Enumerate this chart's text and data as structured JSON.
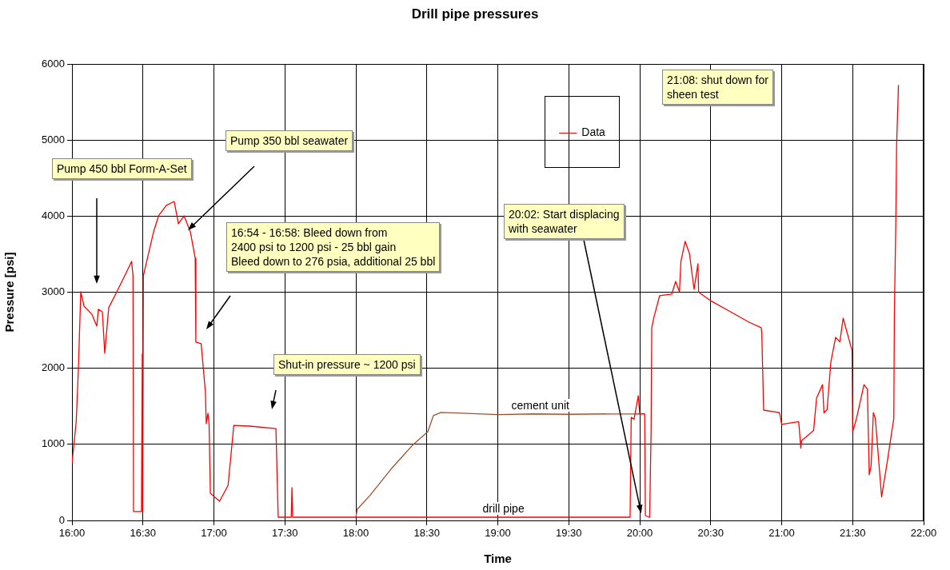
{
  "chart_data": {
    "type": "line",
    "title": "Drill pipe pressures",
    "xlabel": "Time",
    "ylabel": "Pressure [psi]",
    "xlim": [
      16,
      22
    ],
    "xticks": [
      {
        "value": 16,
        "label": "16:00"
      },
      {
        "value": 16.5,
        "label": "16:30"
      },
      {
        "value": 17,
        "label": "17:00"
      },
      {
        "value": 17.5,
        "label": "17:30"
      },
      {
        "value": 18,
        "label": "18:00"
      },
      {
        "value": 18.5,
        "label": "18:30"
      },
      {
        "value": 19,
        "label": "19:00"
      },
      {
        "value": 19.5,
        "label": "19:30"
      },
      {
        "value": 20,
        "label": "20:00"
      },
      {
        "value": 20.5,
        "label": "20:30"
      },
      {
        "value": 21,
        "label": "21:00"
      },
      {
        "value": 21.5,
        "label": "21:30"
      },
      {
        "value": 22,
        "label": "22:00"
      }
    ],
    "ylim": [
      0,
      6000
    ],
    "yticks": [
      0,
      1000,
      2000,
      3000,
      4000,
      5000,
      6000
    ],
    "grid": true,
    "legend": "top",
    "marker": "none",
    "line_style": "solid",
    "series": [
      {
        "name": "Data",
        "color": "#ff0000",
        "x": [
          16.0,
          16.03,
          16.045,
          16.062,
          16.085,
          16.14,
          16.175,
          16.186,
          16.214,
          16.231,
          16.259,
          16.31,
          16.366,
          16.42,
          16.43,
          16.434,
          16.49,
          16.495,
          16.498,
          16.503,
          16.575,
          16.61,
          16.665,
          16.72,
          16.75,
          16.79,
          16.834,
          16.868,
          16.873,
          16.91,
          16.94,
          16.946,
          16.958,
          16.966,
          16.975,
          17.04,
          17.1,
          17.14,
          17.25,
          17.437,
          17.453,
          17.545,
          17.55,
          17.555,
          18.5,
          19.0,
          19.5,
          19.932,
          19.94,
          19.96,
          19.99,
          20.0,
          20.035,
          20.04,
          20.07,
          20.08,
          20.085,
          20.1,
          20.14,
          20.225,
          20.253,
          20.28,
          20.29,
          20.32,
          20.35,
          20.383,
          20.41,
          20.415,
          20.507,
          20.64,
          20.77,
          20.856,
          20.86,
          20.873,
          20.94,
          20.985,
          21.0,
          21.12,
          21.135,
          21.14,
          21.225,
          21.246,
          21.288,
          21.298,
          21.32,
          21.346,
          21.38,
          21.41,
          21.433,
          21.496,
          21.5,
          21.527,
          21.58,
          21.604,
          21.617,
          21.63,
          21.646,
          21.66,
          21.704,
          21.746,
          21.777,
          21.79,
          21.794,
          21.804,
          21.81,
          21.823
        ],
        "values": [
          750,
          1300,
          1976,
          3006,
          2816,
          2710,
          2554,
          2775,
          2743,
          2197,
          2796,
          2985,
          3195,
          3405,
          3220,
          116,
          116,
          2186,
          116,
          3216,
          3794,
          4004,
          4141,
          4193,
          3899,
          4004,
          3794,
          3447,
          2344,
          2323,
          1692,
          1272,
          1408,
          1272,
          357,
          252,
          462,
          1250,
          1240,
          1208,
          42,
          42,
          431,
          42,
          42,
          42,
          42,
          42,
          1356,
          1330,
          1640,
          1400,
          1400,
          63,
          42,
          1167,
          2533,
          2670,
          2953,
          2974,
          3142,
          3006,
          3405,
          3668,
          3510,
          3037,
          3374,
          3000,
          2880,
          2743,
          2606,
          2533,
          2460,
          1450,
          1430,
          1416,
          1262,
          1300,
          950,
          1048,
          1183,
          1610,
          1785,
          1416,
          1455,
          2076,
          2406,
          2347,
          2658,
          2231,
          1164,
          1339,
          1785,
          1727,
          601,
          718,
          1416,
          1339,
          310,
          795,
          1183,
          1339,
          2697,
          3899,
          4947,
          5723
        ]
      },
      {
        "color": "#a0522d",
        "x": [
          18.0,
          18.01,
          18.1,
          18.25,
          18.4,
          18.507,
          18.546,
          18.6,
          18.75,
          19.0,
          19.25,
          19.5,
          19.75,
          19.94,
          20.0
        ],
        "values": [
          42,
          147,
          330,
          680,
          990,
          1167,
          1377,
          1419,
          1410,
          1390,
          1400,
          1395,
          1400,
          1398,
          1400
        ]
      }
    ],
    "annotations": [
      "Pump 450 bbl Form-A-Set",
      "Pump 350 bbl seawater",
      "16:54 - 16:58: Bleed down from\n2400 psi to 1200 psi - 25 bbl gain\nBleed down to 276 psia, additional 25 bbl",
      "Shut-in pressure ~ 1200 psi",
      {
        "text": "20:02: Start displacing\nwith seawater",
        "x": 20.01,
        "y": 95
      },
      "21:08: shut down for\nsheen test",
      {
        "text": "cement unit",
        "x": 19.3,
        "y": 1400
      },
      {
        "text": "drill pipe",
        "x": 19.04,
        "y": 42
      }
    ]
  }
}
